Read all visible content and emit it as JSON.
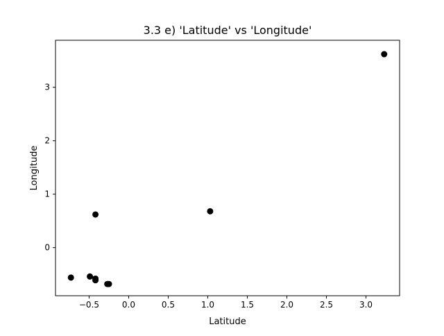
{
  "chart_data": {
    "type": "scatter",
    "title": "3.3 e) 'Latitude' vs 'Longitude'",
    "xlabel": "Latitude",
    "ylabel": "Longitude",
    "xlim": [
      -0.925,
      3.425
    ],
    "ylim": [
      -0.9,
      3.88
    ],
    "grid": false,
    "legend": "none",
    "marker_color": "#000000",
    "x_ticks": [
      {
        "value": -0.5,
        "label": "−0.5"
      },
      {
        "value": 0.0,
        "label": "0.0"
      },
      {
        "value": 0.5,
        "label": "0.5"
      },
      {
        "value": 1.0,
        "label": "1.0"
      },
      {
        "value": 1.5,
        "label": "1.5"
      },
      {
        "value": 2.0,
        "label": "2.0"
      },
      {
        "value": 2.5,
        "label": "2.5"
      },
      {
        "value": 3.0,
        "label": "3.0"
      }
    ],
    "y_ticks": [
      {
        "value": 0,
        "label": "0"
      },
      {
        "value": 1,
        "label": "1"
      },
      {
        "value": 2,
        "label": "2"
      },
      {
        "value": 3,
        "label": "3"
      }
    ],
    "points": [
      {
        "x": -0.73,
        "y": -0.56
      },
      {
        "x": -0.49,
        "y": -0.54
      },
      {
        "x": -0.42,
        "y": -0.58
      },
      {
        "x": -0.42,
        "y": -0.61
      },
      {
        "x": -0.42,
        "y": 0.62
      },
      {
        "x": -0.27,
        "y": -0.68
      },
      {
        "x": -0.25,
        "y": -0.68
      },
      {
        "x": 1.03,
        "y": 0.68
      },
      {
        "x": 3.23,
        "y": 3.62
      }
    ]
  }
}
